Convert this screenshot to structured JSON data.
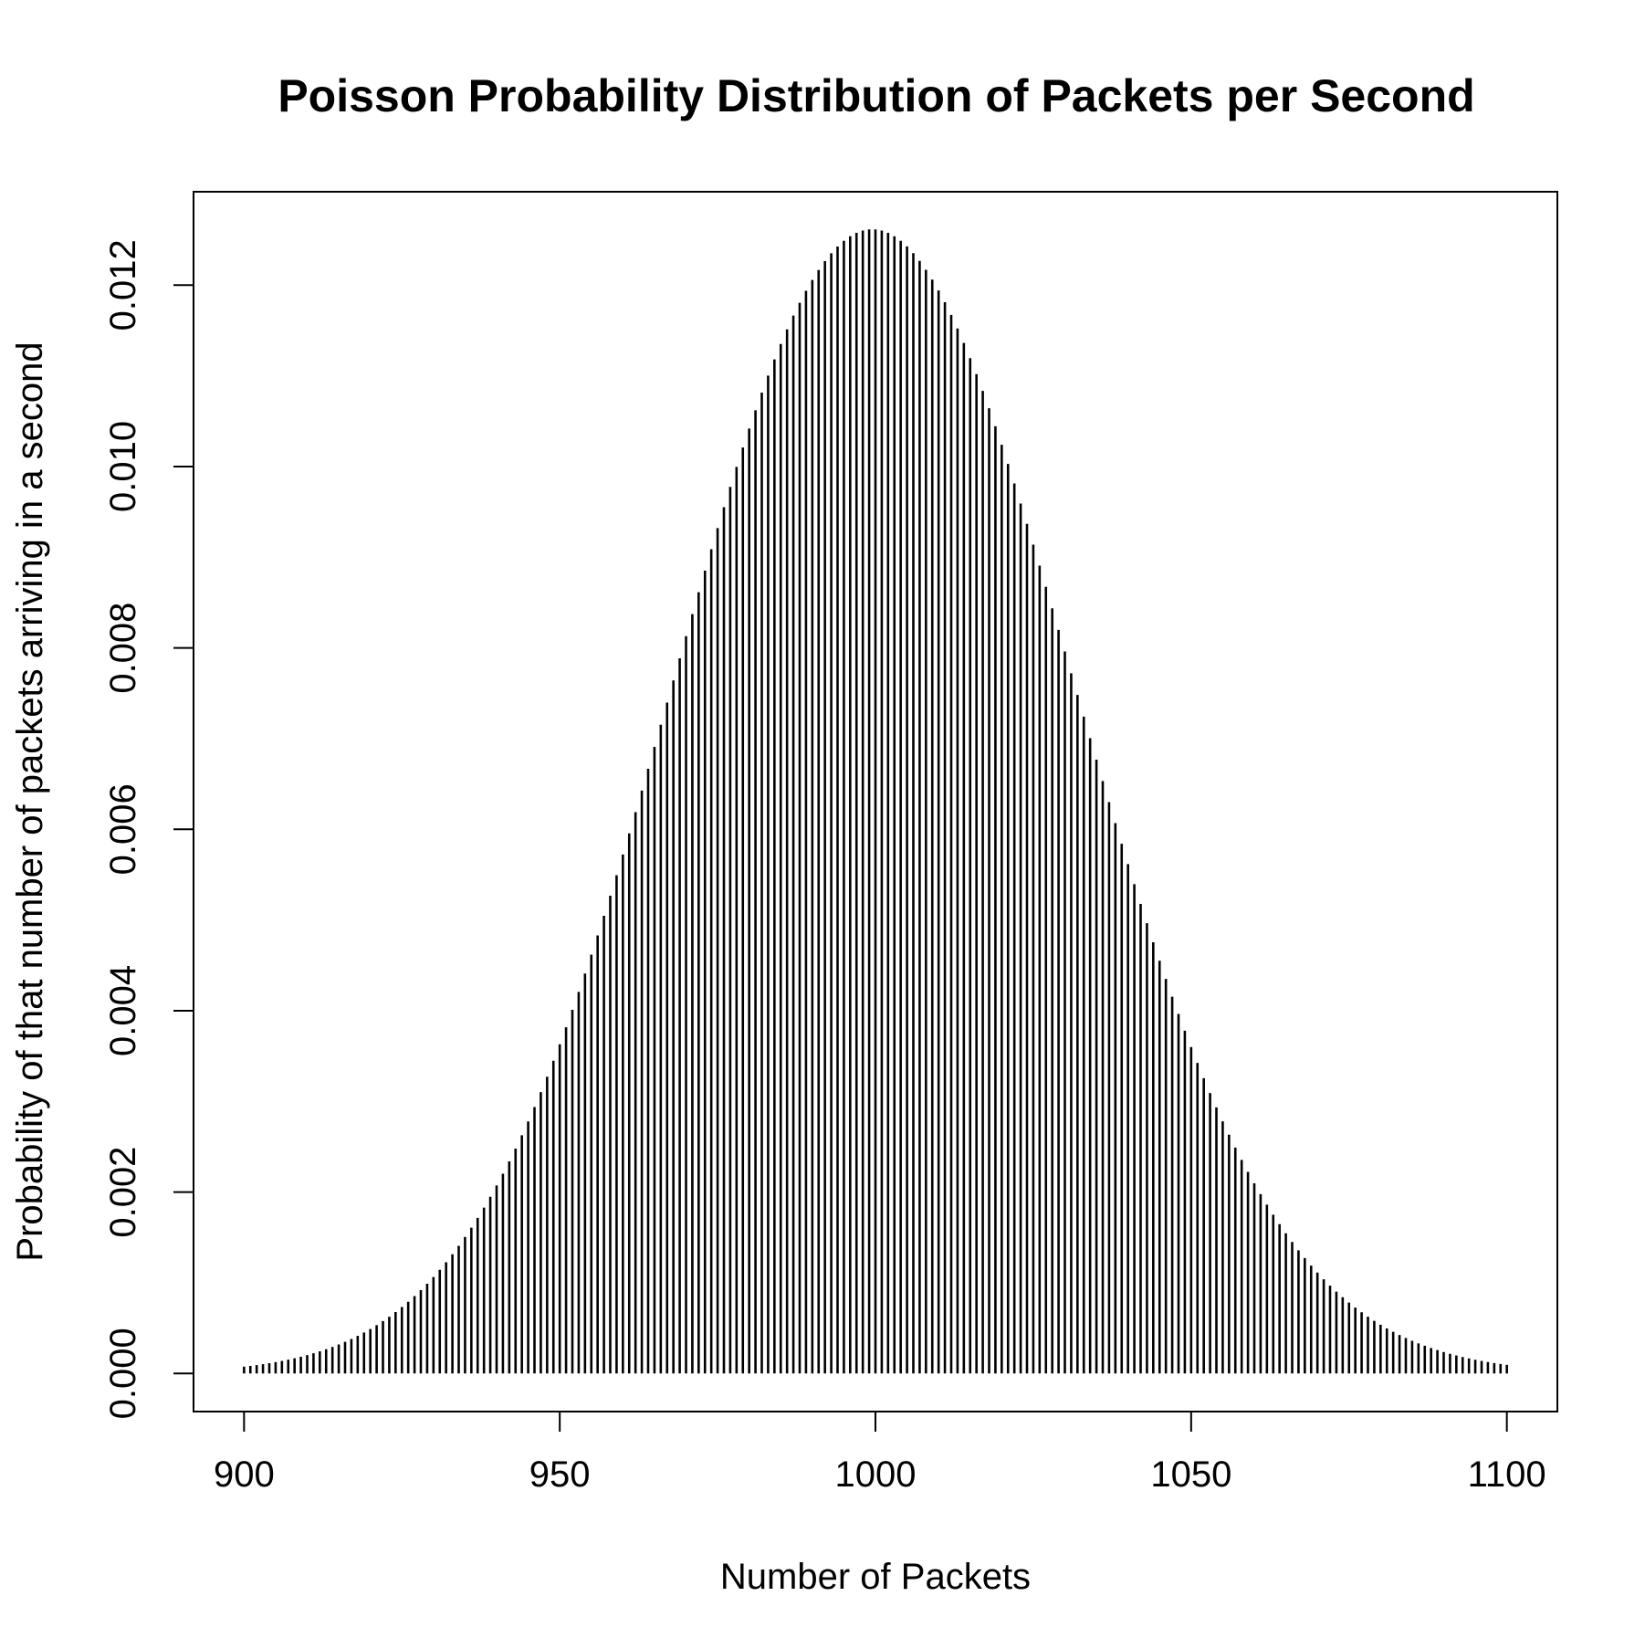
{
  "chart_data": {
    "type": "bar",
    "subtype": "probability mass spikes",
    "title": "Poisson Probability Distribution of Packets per Second",
    "xlabel": "Number of Packets",
    "ylabel": "Probability of that number of packets arriving in a second",
    "distribution": "poisson",
    "lambda": 1000,
    "x_range": [
      900,
      1100
    ],
    "x_step": 1,
    "xlim": [
      892,
      1108
    ],
    "ylim": [
      -0.00042,
      0.01303
    ],
    "x_ticks": [
      900,
      950,
      1000,
      1050,
      1100
    ],
    "x_tick_labels": [
      "900",
      "950",
      "1000",
      "1050",
      "1100"
    ],
    "y_ticks": [
      0.0,
      0.002,
      0.004,
      0.006,
      0.008,
      0.01,
      0.012
    ],
    "y_tick_labels": [
      "0.000",
      "0.002",
      "0.004",
      "0.006",
      "0.008",
      "0.010",
      "0.012"
    ],
    "peak": {
      "x": 1000,
      "y": 0.0126
    },
    "grid": false,
    "legend": "none",
    "colors": {
      "bars": "#000000",
      "frame": "#000000",
      "background": "#ffffff"
    }
  }
}
